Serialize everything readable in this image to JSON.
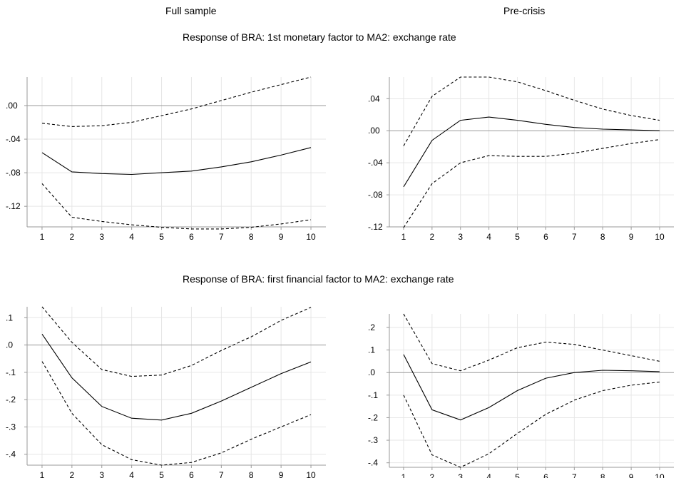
{
  "headers": {
    "left": "Full sample",
    "right": "Pre-crisis",
    "row1": "Response of BRA: 1st monetary factor to MA2: exchange rate",
    "row2": "Response of BRA: first financial factor to MA2: exchange rate"
  },
  "chart_data": [
    {
      "type": "line",
      "title": "",
      "x": [
        1,
        2,
        3,
        4,
        5,
        6,
        7,
        8,
        9,
        10
      ],
      "xlim": [
        0.5,
        10.5
      ],
      "ylim": [
        -0.1445,
        0.034
      ],
      "yticks": [
        0.0,
        -0.04,
        -0.08,
        -0.12
      ],
      "ytick_labels": [
        ".00",
        "-.04",
        "-.08",
        "-.12"
      ],
      "grid": true,
      "series": [
        {
          "role": "response",
          "style": "solid",
          "values": [
            -0.056,
            -0.079,
            -0.081,
            -0.082,
            -0.08,
            -0.078,
            -0.073,
            -0.067,
            -0.059,
            -0.05
          ]
        },
        {
          "role": "upper",
          "style": "dashed",
          "values": [
            -0.021,
            -0.025,
            -0.024,
            -0.02,
            -0.012,
            -0.004,
            0.006,
            0.016,
            0.025,
            0.034
          ]
        },
        {
          "role": "lower",
          "style": "dashed",
          "values": [
            -0.093,
            -0.133,
            -0.138,
            -0.142,
            -0.145,
            -0.147,
            -0.147,
            -0.145,
            -0.141,
            -0.136
          ]
        }
      ]
    },
    {
      "type": "line",
      "title": "",
      "x": [
        1,
        2,
        3,
        4,
        5,
        6,
        7,
        8,
        9,
        10
      ],
      "xlim": [
        0.5,
        10.5
      ],
      "ylim": [
        -0.12,
        0.067
      ],
      "yticks": [
        0.04,
        0.0,
        -0.04,
        -0.08,
        -0.12
      ],
      "ytick_labels": [
        ".04",
        ".00",
        "-.04",
        "-.08",
        "-.12"
      ],
      "grid": true,
      "series": [
        {
          "role": "response",
          "style": "solid",
          "values": [
            -0.07,
            -0.012,
            0.013,
            0.017,
            0.013,
            0.008,
            0.004,
            0.002,
            0.001,
            0.0
          ]
        },
        {
          "role": "upper",
          "style": "dashed",
          "values": [
            -0.019,
            0.043,
            0.067,
            0.067,
            0.061,
            0.05,
            0.038,
            0.027,
            0.019,
            0.013
          ]
        },
        {
          "role": "lower",
          "style": "dashed",
          "values": [
            -0.121,
            -0.066,
            -0.04,
            -0.031,
            -0.032,
            -0.032,
            -0.028,
            -0.022,
            -0.016,
            -0.011
          ]
        }
      ]
    },
    {
      "type": "line",
      "title": "",
      "x": [
        1,
        2,
        3,
        4,
        5,
        6,
        7,
        8,
        9,
        10
      ],
      "xlim": [
        0.5,
        10.5
      ],
      "ylim": [
        -0.44,
        0.14
      ],
      "yticks": [
        0.1,
        0.0,
        -0.1,
        -0.2,
        -0.3,
        -0.4
      ],
      "ytick_labels": [
        ".1",
        ".0",
        "-.1",
        "-.2",
        "-.3",
        "-.4"
      ],
      "grid": true,
      "series": [
        {
          "role": "response",
          "style": "solid",
          "values": [
            0.04,
            -0.12,
            -0.225,
            -0.268,
            -0.275,
            -0.25,
            -0.205,
            -0.155,
            -0.105,
            -0.062
          ]
        },
        {
          "role": "upper",
          "style": "dashed",
          "values": [
            0.14,
            0.01,
            -0.09,
            -0.115,
            -0.11,
            -0.075,
            -0.02,
            0.03,
            0.09,
            0.138
          ]
        },
        {
          "role": "lower",
          "style": "dashed",
          "values": [
            -0.06,
            -0.25,
            -0.365,
            -0.42,
            -0.44,
            -0.43,
            -0.395,
            -0.345,
            -0.3,
            -0.255
          ]
        }
      ]
    },
    {
      "type": "line",
      "title": "",
      "x": [
        1,
        2,
        3,
        4,
        5,
        6,
        7,
        8,
        9,
        10
      ],
      "xlim": [
        0.5,
        10.5
      ],
      "ylim": [
        -0.42,
        0.26
      ],
      "yticks": [
        0.2,
        0.1,
        0.0,
        -0.1,
        -0.2,
        -0.3,
        -0.4
      ],
      "ytick_labels": [
        ".2",
        ".1",
        ".0",
        "-.1",
        "-.2",
        "-.3",
        "-.4"
      ],
      "grid": true,
      "series": [
        {
          "role": "response",
          "style": "solid",
          "values": [
            0.08,
            -0.165,
            -0.21,
            -0.155,
            -0.08,
            -0.025,
            0.0,
            0.01,
            0.008,
            0.004
          ]
        },
        {
          "role": "upper",
          "style": "dashed",
          "values": [
            0.26,
            0.04,
            0.008,
            0.055,
            0.11,
            0.135,
            0.125,
            0.1,
            0.075,
            0.05
          ]
        },
        {
          "role": "lower",
          "style": "dashed",
          "values": [
            -0.1,
            -0.365,
            -0.42,
            -0.36,
            -0.27,
            -0.185,
            -0.122,
            -0.08,
            -0.056,
            -0.042
          ]
        }
      ]
    }
  ]
}
